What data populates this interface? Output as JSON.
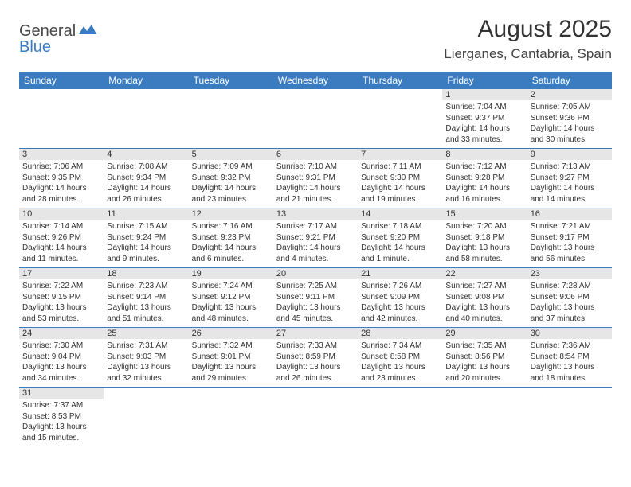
{
  "logo": {
    "text1": "General",
    "text2": "Blue"
  },
  "title": "August 2025",
  "location": "Lierganes, Cantabria, Spain",
  "colors": {
    "header_bg": "#3b7bbf",
    "header_text": "#ffffff",
    "daynum_bg": "#e6e6e6",
    "row_border": "#3b7bbf",
    "page_bg": "#ffffff",
    "body_text": "#333333"
  },
  "typography": {
    "title_fontsize": 30,
    "location_fontsize": 17,
    "header_fontsize": 12,
    "daynum_fontsize": 11,
    "cell_fontsize": 10
  },
  "layout": {
    "columns": 7,
    "rows": 6
  },
  "weekdays": [
    "Sunday",
    "Monday",
    "Tuesday",
    "Wednesday",
    "Thursday",
    "Friday",
    "Saturday"
  ],
  "cells": [
    [
      {
        "blank": true
      },
      {
        "blank": true
      },
      {
        "blank": true
      },
      {
        "blank": true
      },
      {
        "blank": true
      },
      {
        "day": "1",
        "sunrise": "Sunrise: 7:04 AM",
        "sunset": "Sunset: 9:37 PM",
        "daylight": "Daylight: 14 hours and 33 minutes."
      },
      {
        "day": "2",
        "sunrise": "Sunrise: 7:05 AM",
        "sunset": "Sunset: 9:36 PM",
        "daylight": "Daylight: 14 hours and 30 minutes."
      }
    ],
    [
      {
        "day": "3",
        "sunrise": "Sunrise: 7:06 AM",
        "sunset": "Sunset: 9:35 PM",
        "daylight": "Daylight: 14 hours and 28 minutes."
      },
      {
        "day": "4",
        "sunrise": "Sunrise: 7:08 AM",
        "sunset": "Sunset: 9:34 PM",
        "daylight": "Daylight: 14 hours and 26 minutes."
      },
      {
        "day": "5",
        "sunrise": "Sunrise: 7:09 AM",
        "sunset": "Sunset: 9:32 PM",
        "daylight": "Daylight: 14 hours and 23 minutes."
      },
      {
        "day": "6",
        "sunrise": "Sunrise: 7:10 AM",
        "sunset": "Sunset: 9:31 PM",
        "daylight": "Daylight: 14 hours and 21 minutes."
      },
      {
        "day": "7",
        "sunrise": "Sunrise: 7:11 AM",
        "sunset": "Sunset: 9:30 PM",
        "daylight": "Daylight: 14 hours and 19 minutes."
      },
      {
        "day": "8",
        "sunrise": "Sunrise: 7:12 AM",
        "sunset": "Sunset: 9:28 PM",
        "daylight": "Daylight: 14 hours and 16 minutes."
      },
      {
        "day": "9",
        "sunrise": "Sunrise: 7:13 AM",
        "sunset": "Sunset: 9:27 PM",
        "daylight": "Daylight: 14 hours and 14 minutes."
      }
    ],
    [
      {
        "day": "10",
        "sunrise": "Sunrise: 7:14 AM",
        "sunset": "Sunset: 9:26 PM",
        "daylight": "Daylight: 14 hours and 11 minutes."
      },
      {
        "day": "11",
        "sunrise": "Sunrise: 7:15 AM",
        "sunset": "Sunset: 9:24 PM",
        "daylight": "Daylight: 14 hours and 9 minutes."
      },
      {
        "day": "12",
        "sunrise": "Sunrise: 7:16 AM",
        "sunset": "Sunset: 9:23 PM",
        "daylight": "Daylight: 14 hours and 6 minutes."
      },
      {
        "day": "13",
        "sunrise": "Sunrise: 7:17 AM",
        "sunset": "Sunset: 9:21 PM",
        "daylight": "Daylight: 14 hours and 4 minutes."
      },
      {
        "day": "14",
        "sunrise": "Sunrise: 7:18 AM",
        "sunset": "Sunset: 9:20 PM",
        "daylight": "Daylight: 14 hours and 1 minute."
      },
      {
        "day": "15",
        "sunrise": "Sunrise: 7:20 AM",
        "sunset": "Sunset: 9:18 PM",
        "daylight": "Daylight: 13 hours and 58 minutes."
      },
      {
        "day": "16",
        "sunrise": "Sunrise: 7:21 AM",
        "sunset": "Sunset: 9:17 PM",
        "daylight": "Daylight: 13 hours and 56 minutes."
      }
    ],
    [
      {
        "day": "17",
        "sunrise": "Sunrise: 7:22 AM",
        "sunset": "Sunset: 9:15 PM",
        "daylight": "Daylight: 13 hours and 53 minutes."
      },
      {
        "day": "18",
        "sunrise": "Sunrise: 7:23 AM",
        "sunset": "Sunset: 9:14 PM",
        "daylight": "Daylight: 13 hours and 51 minutes."
      },
      {
        "day": "19",
        "sunrise": "Sunrise: 7:24 AM",
        "sunset": "Sunset: 9:12 PM",
        "daylight": "Daylight: 13 hours and 48 minutes."
      },
      {
        "day": "20",
        "sunrise": "Sunrise: 7:25 AM",
        "sunset": "Sunset: 9:11 PM",
        "daylight": "Daylight: 13 hours and 45 minutes."
      },
      {
        "day": "21",
        "sunrise": "Sunrise: 7:26 AM",
        "sunset": "Sunset: 9:09 PM",
        "daylight": "Daylight: 13 hours and 42 minutes."
      },
      {
        "day": "22",
        "sunrise": "Sunrise: 7:27 AM",
        "sunset": "Sunset: 9:08 PM",
        "daylight": "Daylight: 13 hours and 40 minutes."
      },
      {
        "day": "23",
        "sunrise": "Sunrise: 7:28 AM",
        "sunset": "Sunset: 9:06 PM",
        "daylight": "Daylight: 13 hours and 37 minutes."
      }
    ],
    [
      {
        "day": "24",
        "sunrise": "Sunrise: 7:30 AM",
        "sunset": "Sunset: 9:04 PM",
        "daylight": "Daylight: 13 hours and 34 minutes."
      },
      {
        "day": "25",
        "sunrise": "Sunrise: 7:31 AM",
        "sunset": "Sunset: 9:03 PM",
        "daylight": "Daylight: 13 hours and 32 minutes."
      },
      {
        "day": "26",
        "sunrise": "Sunrise: 7:32 AM",
        "sunset": "Sunset: 9:01 PM",
        "daylight": "Daylight: 13 hours and 29 minutes."
      },
      {
        "day": "27",
        "sunrise": "Sunrise: 7:33 AM",
        "sunset": "Sunset: 8:59 PM",
        "daylight": "Daylight: 13 hours and 26 minutes."
      },
      {
        "day": "28",
        "sunrise": "Sunrise: 7:34 AM",
        "sunset": "Sunset: 8:58 PM",
        "daylight": "Daylight: 13 hours and 23 minutes."
      },
      {
        "day": "29",
        "sunrise": "Sunrise: 7:35 AM",
        "sunset": "Sunset: 8:56 PM",
        "daylight": "Daylight: 13 hours and 20 minutes."
      },
      {
        "day": "30",
        "sunrise": "Sunrise: 7:36 AM",
        "sunset": "Sunset: 8:54 PM",
        "daylight": "Daylight: 13 hours and 18 minutes."
      }
    ],
    [
      {
        "day": "31",
        "sunrise": "Sunrise: 7:37 AM",
        "sunset": "Sunset: 8:53 PM",
        "daylight": "Daylight: 13 hours and 15 minutes."
      },
      {
        "blank": true
      },
      {
        "blank": true
      },
      {
        "blank": true
      },
      {
        "blank": true
      },
      {
        "blank": true
      },
      {
        "blank": true
      }
    ]
  ]
}
